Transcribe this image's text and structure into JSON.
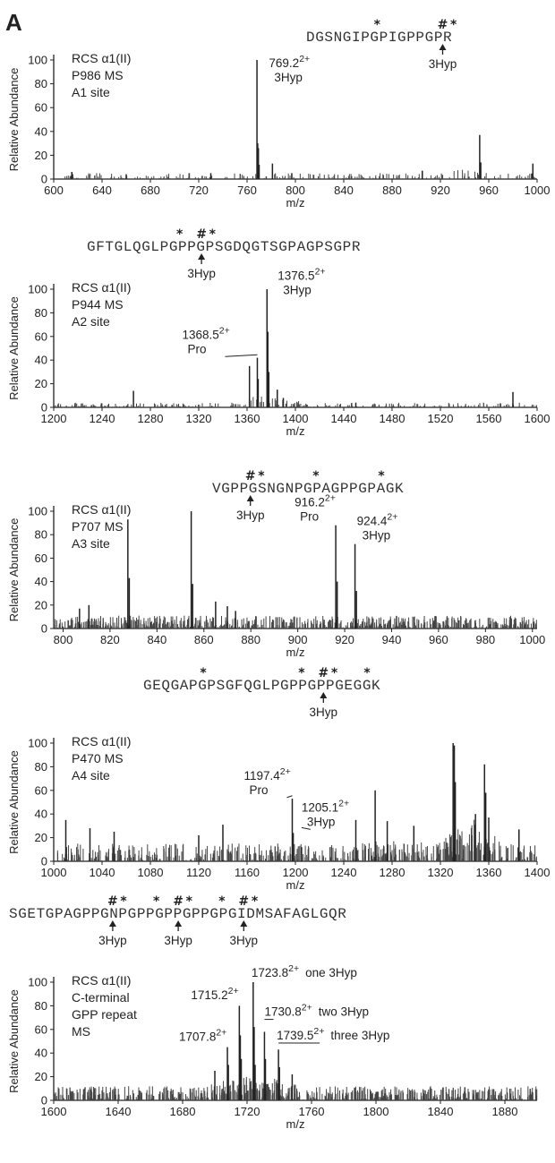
{
  "figure": {
    "panel_label": "A"
  },
  "chart_data": [
    {
      "type": "bar",
      "sequence": "DGSNGIPGPIGPPGPR",
      "markers": [
        {
          "pos": 6,
          "sym": "*"
        },
        {
          "pos": 12,
          "sym": "#"
        },
        {
          "pos": 13,
          "sym": "*"
        }
      ],
      "hyp_arrows": [
        {
          "pos": 12,
          "label": "3Hyp"
        }
      ],
      "info": [
        "RCS α1(II)",
        "P986 MS",
        "A1 site"
      ],
      "xlabel": "m/z",
      "ylabel": "Relative Abundance",
      "xlim": [
        600,
        1000
      ],
      "ylim": [
        0,
        100
      ],
      "xticks": [
        600,
        640,
        680,
        720,
        760,
        800,
        840,
        880,
        920,
        960,
        1000
      ],
      "yticks": [
        0,
        20,
        40,
        60,
        80,
        100
      ],
      "peaks": [
        {
          "mz": 768.2,
          "y": 100
        },
        {
          "mz": 768.8,
          "y": 30
        },
        {
          "mz": 769.4,
          "y": 26
        },
        {
          "mz": 770.0,
          "y": 12
        },
        {
          "mz": 781,
          "y": 13
        },
        {
          "mz": 797,
          "y": 5
        },
        {
          "mz": 952.5,
          "y": 37
        },
        {
          "mz": 953.4,
          "y": 14
        },
        {
          "mz": 996.5,
          "y": 13
        },
        {
          "mz": 615,
          "y": 6
        },
        {
          "mz": 660,
          "y": 4
        },
        {
          "mz": 730,
          "y": 5
        },
        {
          "mz": 905,
          "y": 7
        }
      ],
      "noise": {
        "max": 5,
        "density": 0.45,
        "seed": 11,
        "clusters": [
          {
            "center": 935,
            "width": 30,
            "boost": 6
          }
        ]
      },
      "annotations": [
        {
          "mz": 769.2,
          "y": 82,
          "text": "769.2",
          "sup": "2+",
          "sub": "3Hyp",
          "dx": 12,
          "leader": false
        }
      ]
    },
    {
      "type": "bar",
      "sequence": "GFTGLQGLPGPPGPSGDQGTSGPAGPSGPR",
      "markers": [
        {
          "pos": 8,
          "sym": "*"
        },
        {
          "pos": 10,
          "sym": "#"
        },
        {
          "pos": 11,
          "sym": "*"
        }
      ],
      "hyp_arrows": [
        {
          "pos": 10,
          "label": "3Hyp"
        }
      ],
      "info": [
        "RCS α1(II)",
        "P944 MS",
        "A2 site"
      ],
      "xlabel": "m/z",
      "ylabel": "Relative Abundance",
      "xlim": [
        1200,
        1600
      ],
      "ylim": [
        0,
        100
      ],
      "xticks": [
        1200,
        1240,
        1280,
        1320,
        1360,
        1400,
        1440,
        1480,
        1520,
        1560,
        1600
      ],
      "yticks": [
        0,
        20,
        40,
        60,
        80,
        100
      ],
      "peaks": [
        {
          "mz": 1362,
          "y": 35
        },
        {
          "mz": 1368.5,
          "y": 42
        },
        {
          "mz": 1369.2,
          "y": 24
        },
        {
          "mz": 1376.5,
          "y": 100
        },
        {
          "mz": 1377.2,
          "y": 64
        },
        {
          "mz": 1378.0,
          "y": 30
        },
        {
          "mz": 1385,
          "y": 15
        },
        {
          "mz": 1390,
          "y": 8
        },
        {
          "mz": 1266,
          "y": 14
        },
        {
          "mz": 1580,
          "y": 13
        },
        {
          "mz": 1450,
          "y": 4
        }
      ],
      "noise": {
        "max": 4,
        "density": 0.65,
        "seed": 23,
        "clusters": [
          {
            "center": 1378,
            "width": 35,
            "boost": 9
          }
        ]
      },
      "annotations": [
        {
          "mz": 1376.5,
          "y": 96,
          "text": "1376.5",
          "sup": "2+",
          "sub": "3Hyp",
          "dx": 12,
          "leader": false
        },
        {
          "mz": 1368.5,
          "y": 46,
          "text": "1368.5",
          "sup": "2+",
          "sub": "Pro",
          "dx": -84,
          "leader": true
        }
      ]
    },
    {
      "type": "bar",
      "sequence": "VGPPGSNGNPGPAGPPGPAGK",
      "markers": [
        {
          "pos": 3,
          "sym": "#"
        },
        {
          "pos": 4,
          "sym": "*"
        },
        {
          "pos": 9,
          "sym": "*"
        },
        {
          "pos": 15,
          "sym": "*"
        }
      ],
      "hyp_arrows": [
        {
          "pos": 3,
          "label": "3Hyp"
        }
      ],
      "info": [
        "RCS α1(II)",
        "P707 MS",
        "A3 site"
      ],
      "xlabel": "m/z",
      "ylabel": "Relative Abundance",
      "xlim": [
        796,
        1002
      ],
      "ylim": [
        0,
        100
      ],
      "xticks": [
        800,
        820,
        840,
        860,
        880,
        900,
        920,
        940,
        960,
        980,
        1000
      ],
      "yticks": [
        0,
        20,
        40,
        60,
        80,
        100
      ],
      "peaks": [
        {
          "mz": 827.6,
          "y": 93
        },
        {
          "mz": 828.2,
          "y": 43
        },
        {
          "mz": 854.6,
          "y": 100
        },
        {
          "mz": 855.2,
          "y": 38
        },
        {
          "mz": 865,
          "y": 23
        },
        {
          "mz": 870,
          "y": 19
        },
        {
          "mz": 873.5,
          "y": 15
        },
        {
          "mz": 916.2,
          "y": 88
        },
        {
          "mz": 916.8,
          "y": 40
        },
        {
          "mz": 924.4,
          "y": 72
        },
        {
          "mz": 925.0,
          "y": 32
        },
        {
          "mz": 807,
          "y": 17
        },
        {
          "mz": 811,
          "y": 20
        }
      ],
      "noise": {
        "max": 11,
        "density": 1.6,
        "seed": 37,
        "clusters": []
      },
      "annotations": [
        {
          "mz": 916.2,
          "y": 92,
          "text": "916.2",
          "sup": "2+",
          "sub": "Pro",
          "dx": -46,
          "leader": false
        },
        {
          "mz": 924.4,
          "y": 76,
          "text": "924.4",
          "sup": "2+",
          "sub": "3Hyp",
          "dx": 2,
          "leader": false
        }
      ]
    },
    {
      "type": "bar",
      "sequence": "GEQGAPGPSGFQGLPGPPGPPGEGGK",
      "markers": [
        {
          "pos": 5,
          "sym": "*"
        },
        {
          "pos": 14,
          "sym": "*"
        },
        {
          "pos": 16,
          "sym": "#"
        },
        {
          "pos": 17,
          "sym": "*"
        },
        {
          "pos": 20,
          "sym": "*"
        }
      ],
      "hyp_arrows": [
        {
          "pos": 16,
          "label": "3Hyp"
        }
      ],
      "info": [
        "RCS α1(II)",
        "P470 MS",
        "A4 site"
      ],
      "xlabel": "m/z",
      "ylabel": "Relative Abundance",
      "xlim": [
        1000,
        1400
      ],
      "ylim": [
        0,
        100
      ],
      "xticks": [
        1000,
        1040,
        1080,
        1120,
        1160,
        1200,
        1240,
        1280,
        1320,
        1360,
        1400
      ],
      "yticks": [
        0,
        20,
        40,
        60,
        80,
        100
      ],
      "peaks": [
        {
          "mz": 1197.4,
          "y": 53
        },
        {
          "mz": 1198.2,
          "y": 24
        },
        {
          "mz": 1205.1,
          "y": 12
        },
        {
          "mz": 1266,
          "y": 60
        },
        {
          "mz": 1330.5,
          "y": 100
        },
        {
          "mz": 1331.5,
          "y": 98
        },
        {
          "mz": 1332.3,
          "y": 67
        },
        {
          "mz": 1349,
          "y": 40
        },
        {
          "mz": 1356.5,
          "y": 82
        },
        {
          "mz": 1357.5,
          "y": 58
        },
        {
          "mz": 1360,
          "y": 37
        },
        {
          "mz": 1010,
          "y": 35
        },
        {
          "mz": 1030,
          "y": 28
        },
        {
          "mz": 1050,
          "y": 25
        },
        {
          "mz": 1120,
          "y": 22
        },
        {
          "mz": 1140,
          "y": 31
        },
        {
          "mz": 1276,
          "y": 34
        },
        {
          "mz": 1298,
          "y": 30
        },
        {
          "mz": 1385,
          "y": 27
        },
        {
          "mz": 1250,
          "y": 35
        }
      ],
      "noise": {
        "max": 15,
        "density": 1.1,
        "seed": 53,
        "clusters": [
          {
            "center": 1345,
            "width": 30,
            "boost": 30
          },
          {
            "center": 1290,
            "width": 40,
            "boost": 8
          }
        ]
      },
      "annotations": [
        {
          "mz": 1197.4,
          "y": 57,
          "text": "1197.4",
          "sup": "2+",
          "sub": "Pro",
          "dx": -54,
          "leader": true
        },
        {
          "mz": 1205.1,
          "y": 30,
          "text": "1205.1",
          "sup": "2+",
          "sub": "3Hyp",
          "dx": 0,
          "leader": true
        }
      ]
    },
    {
      "type": "bar",
      "sequence": "SGETGPAGPPGNPGPPGPPGPPGPGIDMSAFAGLGQR",
      "markers": [
        {
          "pos": 9,
          "sym": "#"
        },
        {
          "pos": 10,
          "sym": "*"
        },
        {
          "pos": 13,
          "sym": "*"
        },
        {
          "pos": 15,
          "sym": "#"
        },
        {
          "pos": 16,
          "sym": "*"
        },
        {
          "pos": 19,
          "sym": "*"
        },
        {
          "pos": 21,
          "sym": "#"
        },
        {
          "pos": 22,
          "sym": "*"
        }
      ],
      "hyp_arrows": [
        {
          "pos": 9,
          "label": "3Hyp"
        },
        {
          "pos": 15,
          "label": "3Hyp"
        },
        {
          "pos": 21,
          "label": "3Hyp"
        }
      ],
      "info": [
        "RCS α1(II)",
        "C-terminal",
        "GPP repeat",
        "MS"
      ],
      "xlabel": "m/z",
      "ylabel": "Relative Abundance",
      "xlim": [
        1600,
        1900
      ],
      "ylim": [
        0,
        100
      ],
      "xticks": [
        1600,
        1640,
        1680,
        1720,
        1760,
        1800,
        1840,
        1880
      ],
      "yticks": [
        0,
        20,
        40,
        60,
        80,
        100
      ],
      "peaks": [
        {
          "mz": 1707.8,
          "y": 45
        },
        {
          "mz": 1708.4,
          "y": 30
        },
        {
          "mz": 1715.2,
          "y": 80
        },
        {
          "mz": 1715.8,
          "y": 55
        },
        {
          "mz": 1716.4,
          "y": 35
        },
        {
          "mz": 1723.8,
          "y": 100
        },
        {
          "mz": 1724.4,
          "y": 62
        },
        {
          "mz": 1725.0,
          "y": 30
        },
        {
          "mz": 1730.8,
          "y": 58
        },
        {
          "mz": 1731.4,
          "y": 35
        },
        {
          "mz": 1739.5,
          "y": 43
        },
        {
          "mz": 1740.1,
          "y": 28
        },
        {
          "mz": 1700,
          "y": 25
        },
        {
          "mz": 1748,
          "y": 22
        }
      ],
      "noise": {
        "max": 12,
        "density": 1.5,
        "seed": 71,
        "clusters": [
          {
            "center": 1722,
            "width": 35,
            "boost": 14
          }
        ]
      },
      "annotations": [
        {
          "mz": 1715.2,
          "y": 84,
          "text": "1715.2",
          "sup": "2+",
          "sub": "",
          "dx": -54,
          "leader": false
        },
        {
          "mz": 1723.8,
          "y": 103,
          "text": "1723.8",
          "sup": "2+",
          "sub": "",
          "dx": -2,
          "leader": false,
          "extra": "one 3Hyp"
        },
        {
          "mz": 1730.8,
          "y": 70,
          "text": "1730.8",
          "sup": "2+",
          "sub": "",
          "dx": 0,
          "leader": true,
          "extra": "two 3Hyp"
        },
        {
          "mz": 1707.8,
          "y": 49,
          "text": "1707.8",
          "sup": "2+",
          "sub": "",
          "dx": -54,
          "leader": false
        },
        {
          "mz": 1739.5,
          "y": 50,
          "text": "1739.5",
          "sup": "2+",
          "sub": "",
          "dx": -2,
          "leader": true,
          "extra": "three 3Hyp"
        }
      ]
    }
  ]
}
